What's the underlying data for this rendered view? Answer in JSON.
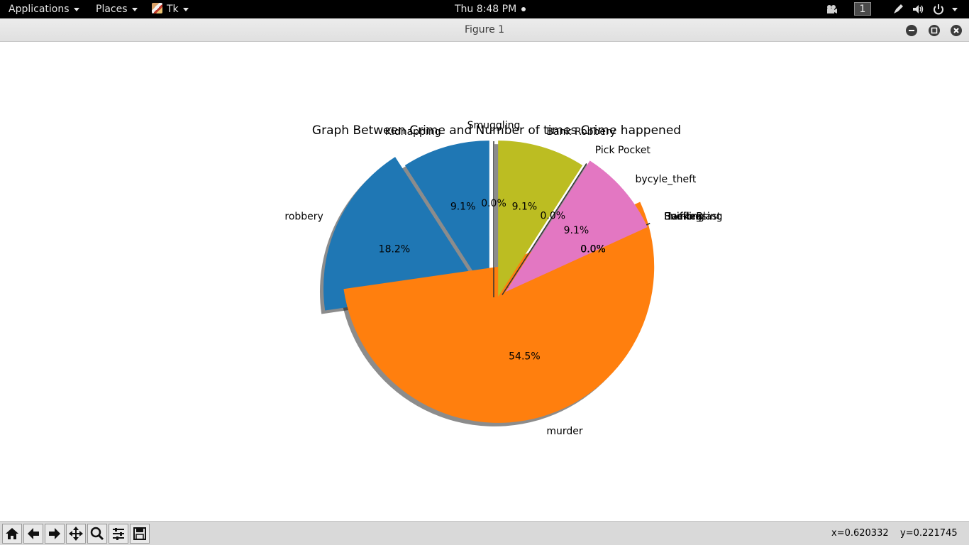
{
  "top_panel": {
    "applications_label": "Applications",
    "places_label": "Places",
    "tk_label": "Tk",
    "clock": "Thu  8:48 PM",
    "workspace": "1",
    "icons": [
      "video-camera-icon",
      "pen-icon",
      "volume-icon",
      "power-icon"
    ]
  },
  "window": {
    "title": "Figure 1",
    "buttons": [
      "minimize-icon",
      "maximize-icon",
      "close-icon"
    ]
  },
  "chart_data": {
    "type": "pie",
    "title": "Graph Between Crime and Number of times Crime happened",
    "startangle_deg": 90,
    "shadow": true,
    "explode": true,
    "slices": [
      {
        "label": "Kidnapping",
        "pct": "9.1%",
        "value": 1,
        "color": "#1f77b4"
      },
      {
        "label": "robbery",
        "pct": "18.2%",
        "value": 2,
        "color": "#1f77b4"
      },
      {
        "label": "murder",
        "pct": "54.5%",
        "value": 6,
        "color": "#ff7f0e"
      },
      {
        "label": "Bomb Blast",
        "pct": "0.0%",
        "value": 0,
        "color": "#2ca02c"
      },
      {
        "label": "Eve-teasing",
        "pct": "0.0%",
        "value": 0,
        "color": "#d62728"
      },
      {
        "label": "Sniffing",
        "pct": "0.0%",
        "value": 0,
        "color": "#9467bd"
      },
      {
        "label": "Hacking",
        "pct": "0.0%",
        "value": 0,
        "color": "#8c564b"
      },
      {
        "label": "bycyle_theft",
        "pct": "9.1%",
        "value": 1,
        "color": "#e377c2"
      },
      {
        "label": "Pick Pocket",
        "pct": "0.0%",
        "value": 0,
        "color": "#7f7f7f"
      },
      {
        "label": "Bank Robbery",
        "pct": "9.1%",
        "value": 1,
        "color": "#bcbd22"
      },
      {
        "label": "Smuggling",
        "pct": "0.0%",
        "value": 0,
        "color": "#17becf"
      }
    ]
  },
  "toolbar": {
    "buttons": [
      "home-icon",
      "back-icon",
      "forward-icon",
      "pan-icon",
      "zoom-icon",
      "configure-subplots-icon",
      "save-icon"
    ],
    "x_readout": "x=0.620332",
    "y_readout": "y=0.221745"
  }
}
